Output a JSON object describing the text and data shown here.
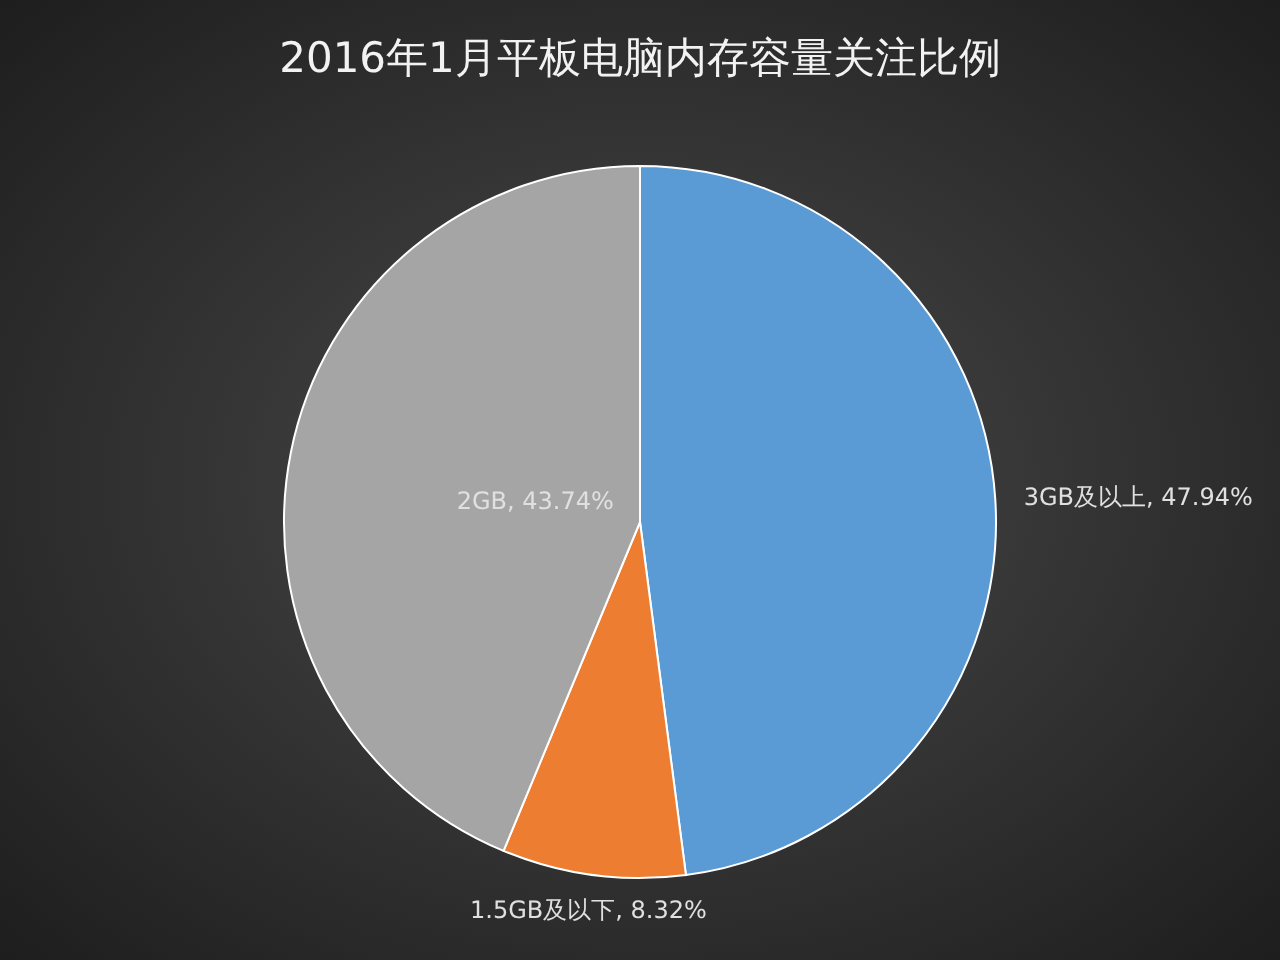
{
  "chart_data": {
    "type": "pie",
    "title": "2016年1月平板电脑内存容量关注比例",
    "categories": [
      "3GB及以上",
      "1.5GB及以下",
      "2GB"
    ],
    "values": [
      47.94,
      8.32,
      43.74
    ],
    "colors": [
      "#5b9bd5",
      "#ed7d31",
      "#a5a5a5"
    ],
    "value_labels": [
      ", 47.94%",
      ", 8.32%",
      ", 43.74%"
    ]
  }
}
